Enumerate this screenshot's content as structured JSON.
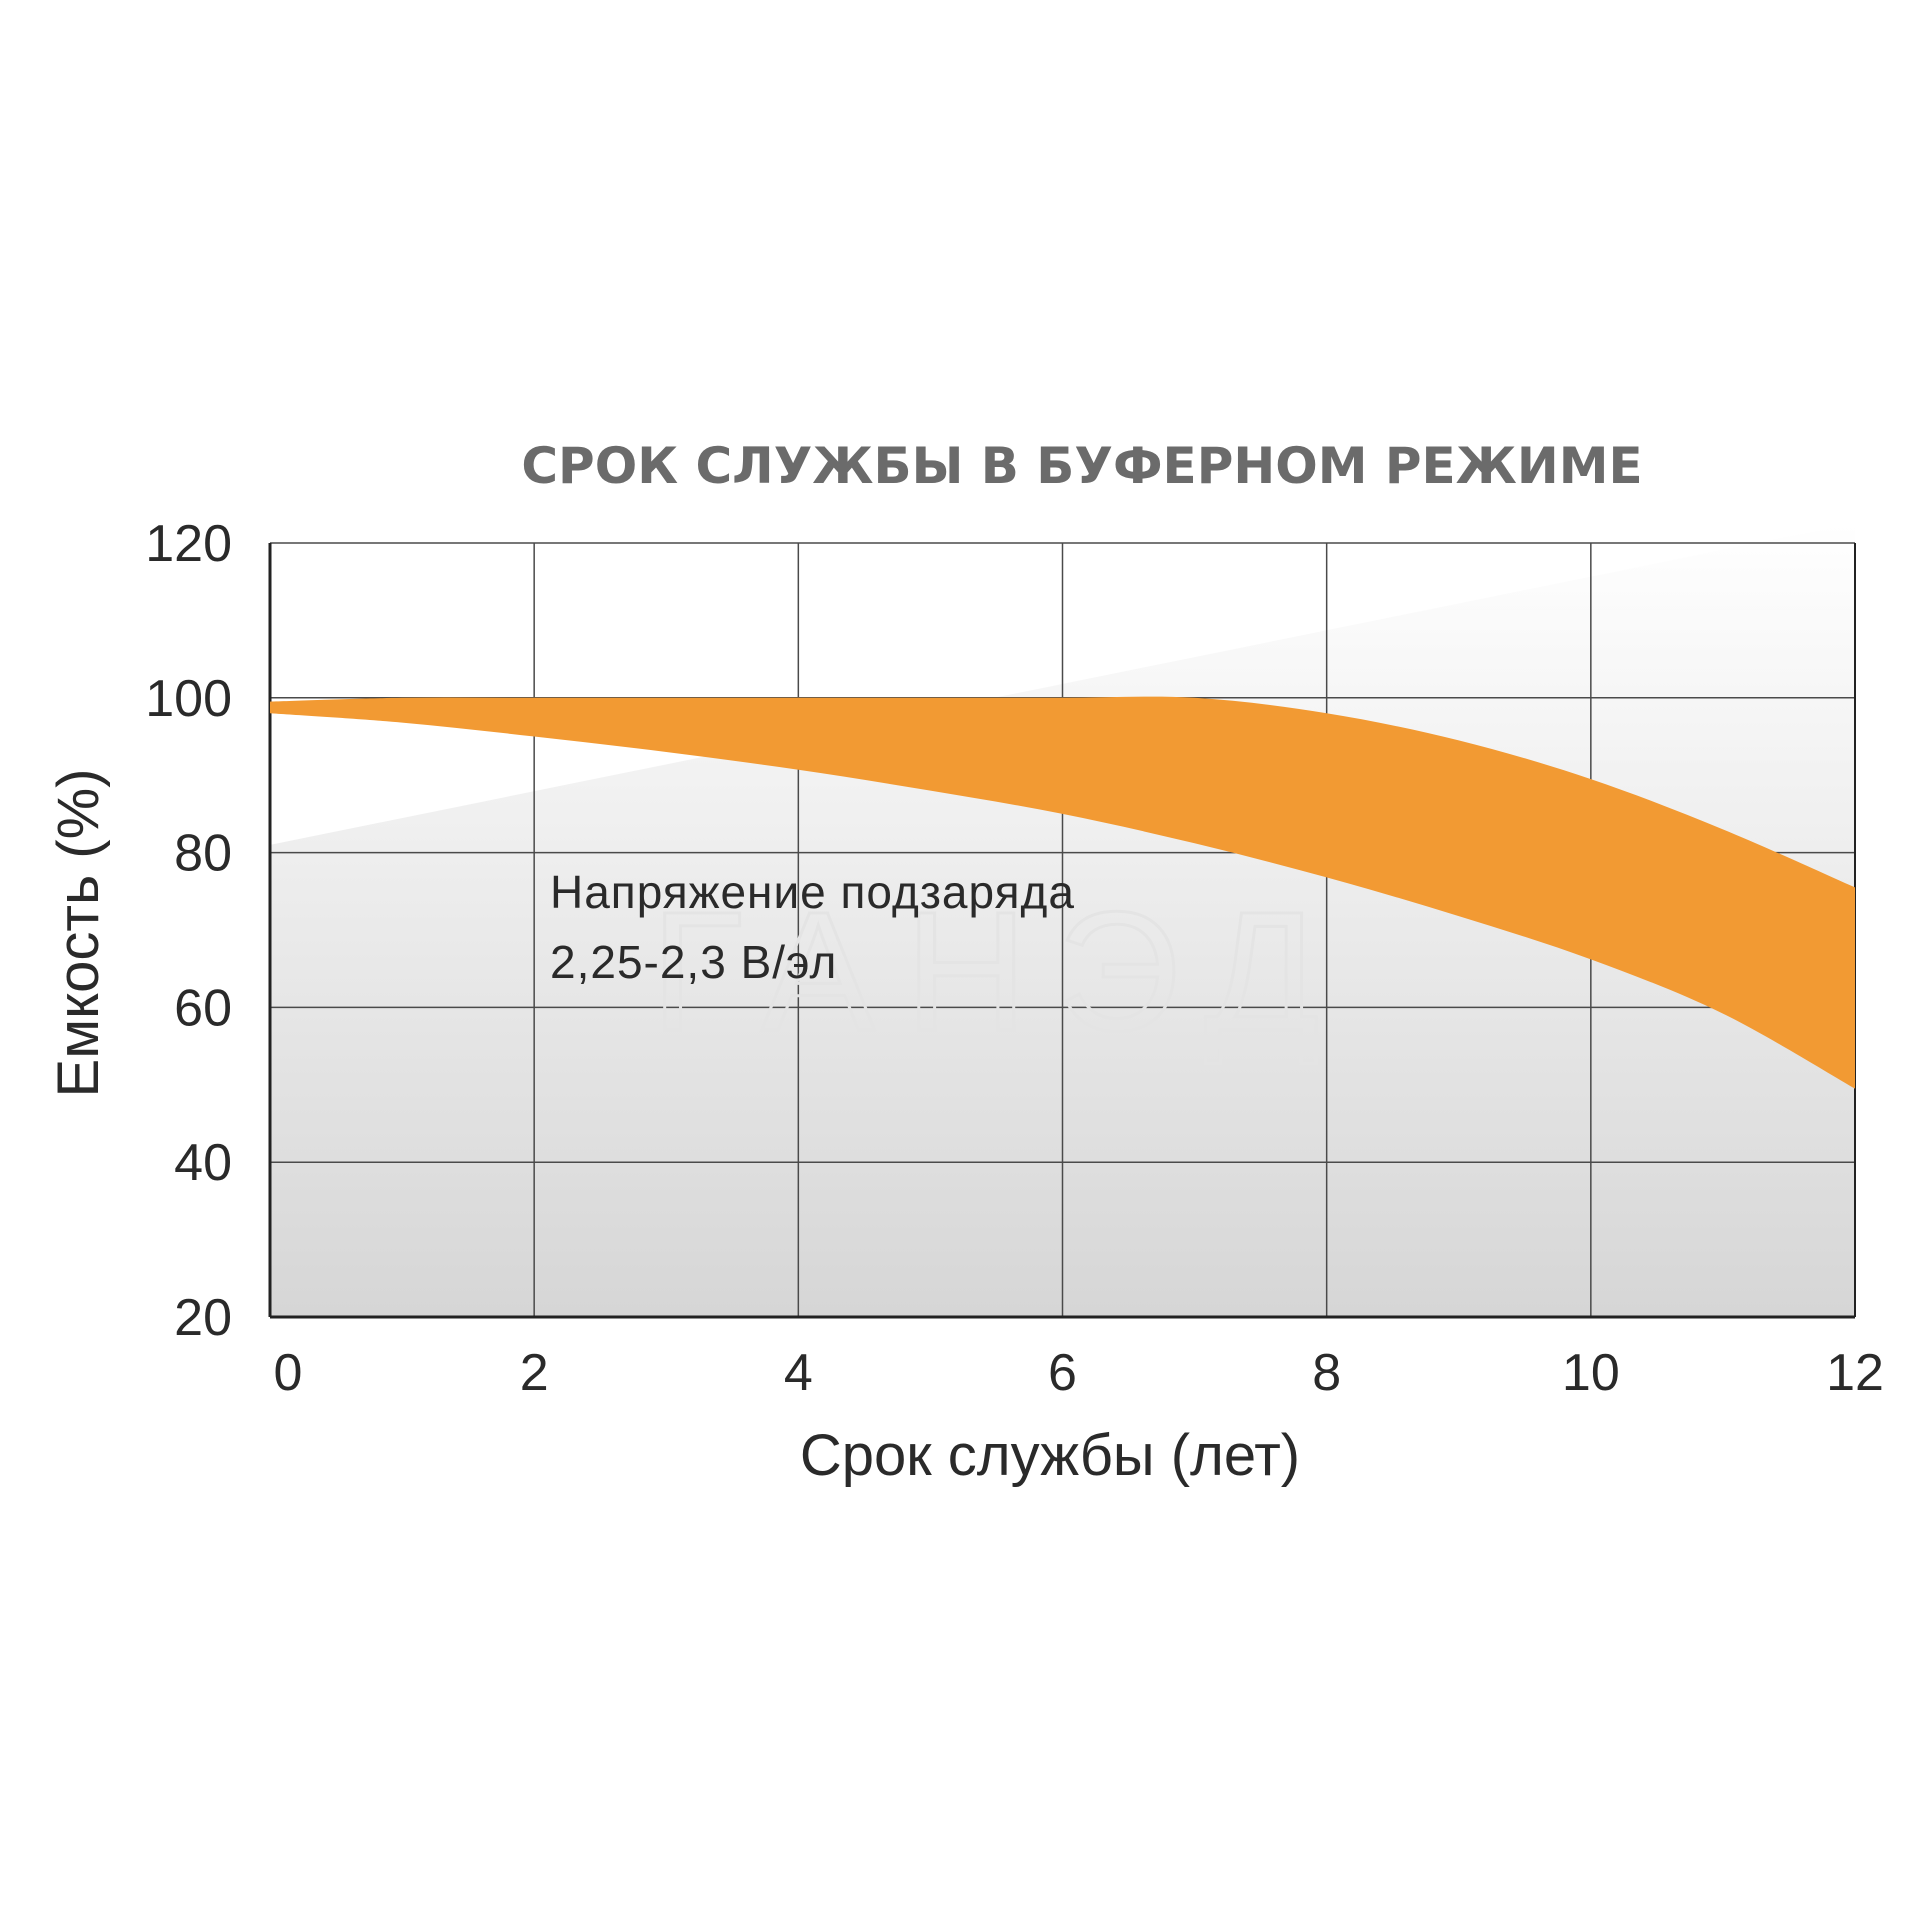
{
  "watermark": "ГАНЭД",
  "chart_data": {
    "type": "area",
    "title": "СРОК СЛУЖБЫ В БУФЕРНОМ РЕЖИМЕ",
    "xlabel": "Срок службы (лет)",
    "ylabel": "Емкость (%)",
    "xlim": [
      0,
      12
    ],
    "ylim": [
      20,
      120
    ],
    "x_ticks": [
      0,
      2,
      4,
      6,
      8,
      10,
      12
    ],
    "y_ticks": [
      20,
      40,
      60,
      80,
      100,
      120
    ],
    "grid": true,
    "annotation": [
      "Напряжение подзаряда",
      "2,25-2,3 В/эл"
    ],
    "band": {
      "color": "#f29a33",
      "x": [
        0,
        1,
        2,
        3,
        4,
        5,
        6,
        7,
        8,
        9,
        10,
        11,
        12
      ],
      "upper": [
        99.5,
        100,
        100,
        100,
        100,
        100,
        100,
        100,
        98,
        94.5,
        89.5,
        83,
        75.5
      ],
      "lower": [
        98,
        96.8,
        95,
        93,
        90.7,
        88,
        85,
        81.2,
        76.8,
        71.8,
        66.2,
        59.2,
        49.5
      ]
    },
    "background_gradient": {
      "top": "#ffffff",
      "bottom": "#d6d6d6"
    }
  }
}
